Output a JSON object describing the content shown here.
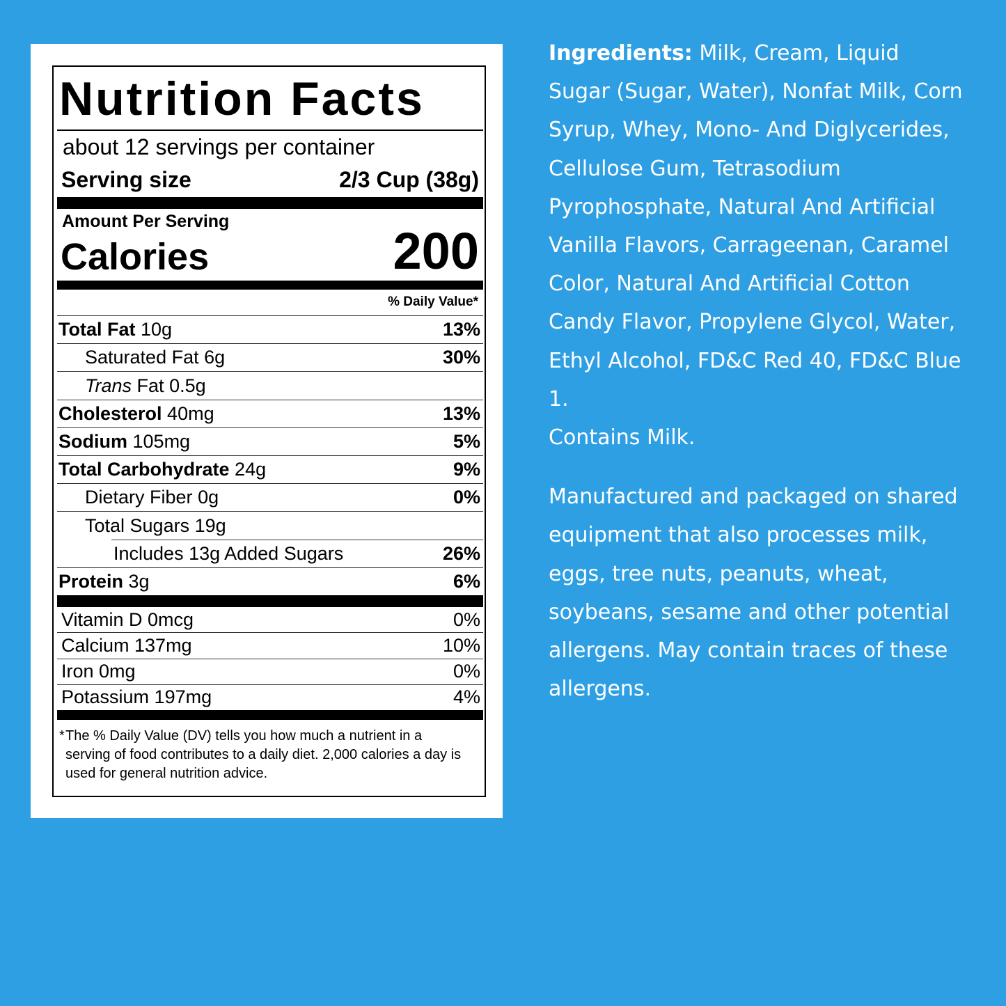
{
  "label": {
    "title": "Nutrition Facts",
    "servings": "about 12 servings per container",
    "serving_size_label": "Serving size",
    "serving_size": "2/3 Cup (38g)",
    "amount_per_serving": "Amount Per Serving",
    "calories_label": "Calories",
    "calories": "200",
    "daily_value_header": "% Daily Value*",
    "nutrients": [
      {
        "label": "Total Fat",
        "amount": "10g",
        "dv": "13%"
      },
      {
        "label": "Saturated Fat",
        "amount": "6g",
        "dv": "30%"
      },
      {
        "italic": "Trans",
        "label": "Fat",
        "amount": "0.5g"
      },
      {
        "label": "Cholesterol",
        "amount": "40mg",
        "dv": "13%"
      },
      {
        "label": "Sodium",
        "amount": "105mg",
        "dv": "5%"
      },
      {
        "label": "Total Carbohydrate",
        "amount": "24g",
        "dv": "9%"
      },
      {
        "label": "Dietary Fiber",
        "amount": "0g",
        "dv": "0%"
      },
      {
        "label": "Total Sugars",
        "amount": "19g"
      },
      {
        "label": "Includes 13g Added Sugars",
        "dv": "26%"
      },
      {
        "label": "Protein",
        "amount": "3g",
        "dv": "6%"
      }
    ],
    "vitamins": [
      {
        "label": "Vitamin D 0mcg",
        "dv": "0%"
      },
      {
        "label": "Calcium 137mg",
        "dv": "10%"
      },
      {
        "label": "Iron 0mg",
        "dv": "0%"
      },
      {
        "label": "Potassium 197mg",
        "dv": "4%"
      }
    ],
    "footnote_marker": "*",
    "footnote": "The % Daily Value (DV) tells you how much a nutrient in a serving of food contributes to a daily diet. 2,000 calories a day is used for general nutrition advice."
  },
  "ingredients": {
    "heading": "Ingredients:",
    "text": "Milk, Cream, Liquid Sugar (Sugar, Water), Nonfat Milk, Corn Syrup, Whey, Mono- And Diglycerides, Cellulose Gum, Tetrasodium Pyrophosphate, Natural And Artificial Vanilla Flavors, Carrageenan, Caramel Color, Natural And Artificial Cotton Candy Flavor, Propylene Glycol, Water, Ethyl Alcohol, FD&C Red 40, FD&C Blue 1.",
    "contains": "Contains Milk."
  },
  "allergen_note": "Manufactured and packaged on shared equipment that also processes milk, eggs, tree nuts, peanuts, wheat, soybeans, sesame and other potential allergens. May contain traces of these allergens."
}
